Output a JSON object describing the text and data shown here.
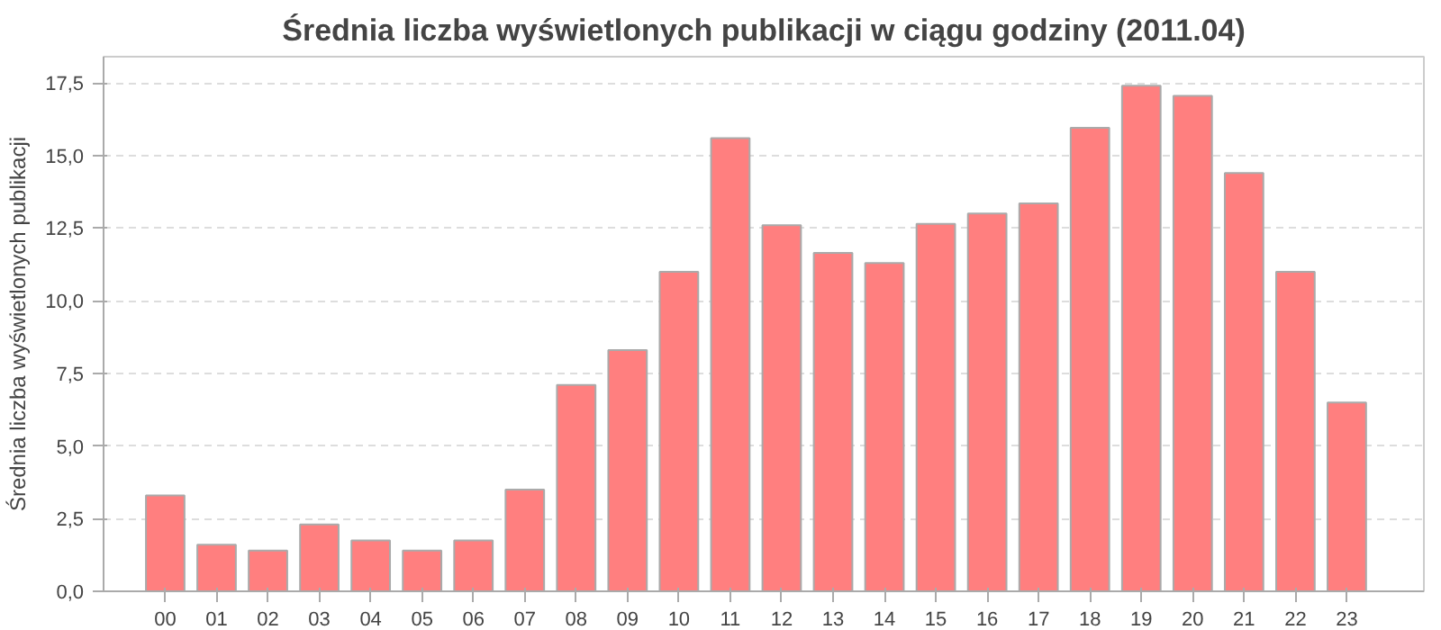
{
  "chart_data": {
    "type": "bar",
    "title": "Średnia liczba wyświetlonych publikacji w ciągu godziny (2011.04)",
    "ylabel": "Średnia liczba wyświetlonych publikacji",
    "categories": [
      "00",
      "01",
      "02",
      "03",
      "04",
      "05",
      "06",
      "07",
      "08",
      "09",
      "10",
      "11",
      "12",
      "13",
      "14",
      "15",
      "16",
      "17",
      "18",
      "19",
      "20",
      "21",
      "22",
      "23"
    ],
    "values": [
      3.3,
      1.6,
      1.4,
      2.3,
      1.75,
      1.4,
      1.75,
      3.5,
      7.1,
      8.3,
      11.0,
      15.6,
      12.6,
      11.65,
      11.3,
      12.65,
      13.0,
      13.35,
      15.95,
      17.4,
      17.05,
      14.4,
      11.0,
      6.5
    ],
    "color": "#ff7f7f",
    "ylim": [
      0,
      18.4
    ],
    "yticks": [
      {
        "value": 0,
        "label": "0,0"
      },
      {
        "value": 2.5,
        "label": "2,5"
      },
      {
        "value": 5,
        "label": "5,0"
      },
      {
        "value": 7.5,
        "label": "7,5"
      },
      {
        "value": 10,
        "label": "10,0"
      },
      {
        "value": 12.5,
        "label": "12,5"
      },
      {
        "value": 15,
        "label": "15,0"
      },
      {
        "value": 17.5,
        "label": "17,5"
      }
    ],
    "grid": "y"
  }
}
